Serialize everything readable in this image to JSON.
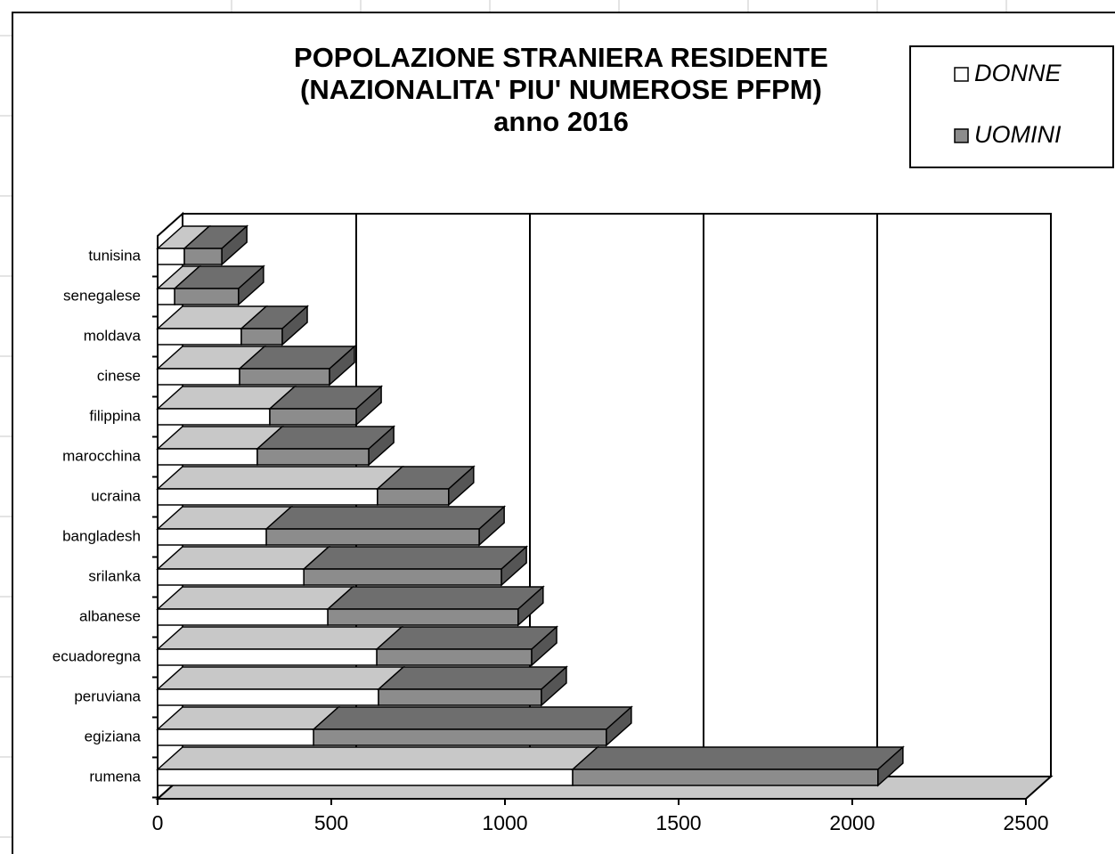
{
  "chart_data": {
    "type": "bar3d_stacked_horizontal",
    "title": [
      "POPOLAZIONE  STRANIERA  RESIDENTE",
      "(NAZIONALITA'  PIU' NUMEROSE  PFPM)",
      "anno 2016"
    ],
    "categories": [
      "tunisina",
      "senegalese",
      "moldava",
      "cinese",
      "filippina",
      "marocchina",
      "ucraina",
      "bangladesh",
      "srilanka",
      "albanese",
      "ecuadoregna",
      "peruviana",
      "egiziana",
      "rumena"
    ],
    "series": [
      {
        "name": "DONNE",
        "color": "#ffffff",
        "top_color": "#c8c8c8",
        "values": [
          77,
          49,
          241,
          236,
          323,
          287,
          633,
          313,
          421,
          490,
          631,
          636,
          449,
          1195
        ]
      },
      {
        "name": "UOMINI",
        "color": "#8c8c8c",
        "top_color": "#6e6e6e",
        "values": [
          108,
          184,
          118,
          259,
          249,
          321,
          205,
          613,
          569,
          548,
          446,
          469,
          843,
          879
        ]
      }
    ],
    "xlim": [
      0,
      2500
    ],
    "xticks": [
      0,
      500,
      1000,
      1500,
      2000,
      2500
    ],
    "grid": true,
    "legend": "top-right"
  }
}
